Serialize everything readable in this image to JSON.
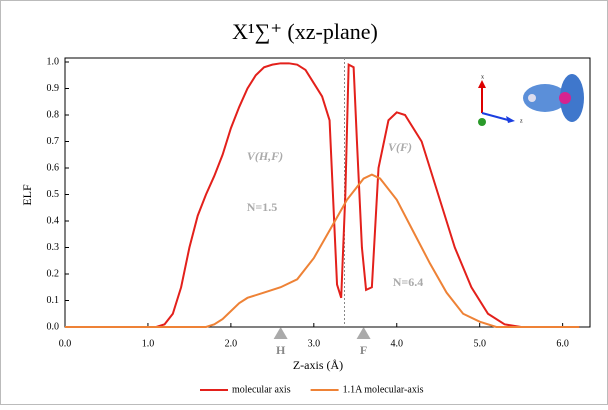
{
  "chart_data": {
    "type": "line",
    "title": "X¹∑⁺ (xz-plane)",
    "xlabel": "Z-axis (Å)",
    "ylabel": "ELF",
    "xlim": [
      0,
      6.33
    ],
    "ylim": [
      0,
      1.0
    ],
    "xticks": [
      {
        "value": 0,
        "label": "0.0"
      },
      {
        "value": 1,
        "label": "1.0"
      },
      {
        "value": 2,
        "label": "2.0"
      },
      {
        "value": 3,
        "label": "3.0"
      },
      {
        "value": 4,
        "label": "4.0"
      },
      {
        "value": 5,
        "label": "5.0"
      },
      {
        "value": 6,
        "label": "6.0"
      }
    ],
    "yticks": [
      {
        "value": 0,
        "label": "0.0"
      },
      {
        "value": 0.1,
        "label": "0.1"
      },
      {
        "value": 0.2,
        "label": "0.2"
      },
      {
        "value": 0.3,
        "label": "0.3"
      },
      {
        "value": 0.4,
        "label": "0.4"
      },
      {
        "value": 0.5,
        "label": "0.5"
      },
      {
        "value": 0.6,
        "label": "0.6"
      },
      {
        "value": 0.7,
        "label": "0.7"
      },
      {
        "value": 0.8,
        "label": "0.8"
      },
      {
        "value": 0.9,
        "label": "0.9"
      },
      {
        "value": 1.0,
        "label": "1.0"
      }
    ],
    "reference_line_x": 3.37,
    "markers": [
      {
        "label": "H",
        "x": 2.6
      },
      {
        "label": "F",
        "x": 3.6
      }
    ],
    "annotations": [
      "V(H,F)",
      "V(F)",
      "N=1.5",
      "N=6.4"
    ],
    "series": [
      {
        "name": "molecular axis",
        "color": "#e3201b",
        "x": [
          0,
          0.5,
          1.0,
          1.1,
          1.2,
          1.3,
          1.4,
          1.5,
          1.6,
          1.7,
          1.8,
          1.9,
          2.0,
          2.1,
          2.2,
          2.3,
          2.4,
          2.5,
          2.6,
          2.7,
          2.8,
          2.9,
          3.0,
          3.1,
          3.19,
          3.28,
          3.33,
          3.38,
          3.42,
          3.48,
          3.52,
          3.58,
          3.63,
          3.7,
          3.78,
          3.9,
          4.0,
          4.1,
          4.3,
          4.5,
          4.7,
          4.9,
          5.1,
          5.3,
          5.5,
          6.0,
          6.2
        ],
        "values": [
          0,
          0,
          0,
          0,
          0.01,
          0.05,
          0.15,
          0.3,
          0.42,
          0.5,
          0.57,
          0.65,
          0.75,
          0.83,
          0.9,
          0.95,
          0.98,
          0.99,
          0.995,
          0.995,
          0.99,
          0.97,
          0.92,
          0.87,
          0.78,
          0.16,
          0.11,
          0.5,
          0.99,
          0.98,
          0.7,
          0.3,
          0.14,
          0.15,
          0.6,
          0.78,
          0.81,
          0.8,
          0.7,
          0.5,
          0.3,
          0.15,
          0.05,
          0.01,
          0,
          0,
          0
        ]
      },
      {
        "name": "1.1A molecular-axis",
        "color": "#ee8236",
        "x": [
          0,
          0.5,
          1.0,
          1.5,
          1.7,
          1.8,
          1.9,
          2.0,
          2.1,
          2.2,
          2.4,
          2.6,
          2.8,
          3.0,
          3.2,
          3.4,
          3.6,
          3.7,
          3.8,
          4.0,
          4.2,
          4.4,
          4.6,
          4.8,
          5.0,
          5.2,
          5.6,
          6.2
        ],
        "values": [
          0,
          0,
          0,
          0,
          0,
          0.01,
          0.03,
          0.06,
          0.09,
          0.11,
          0.13,
          0.15,
          0.18,
          0.26,
          0.37,
          0.48,
          0.56,
          0.575,
          0.56,
          0.48,
          0.36,
          0.24,
          0.13,
          0.05,
          0.02,
          0,
          0,
          0
        ]
      }
    ]
  }
}
